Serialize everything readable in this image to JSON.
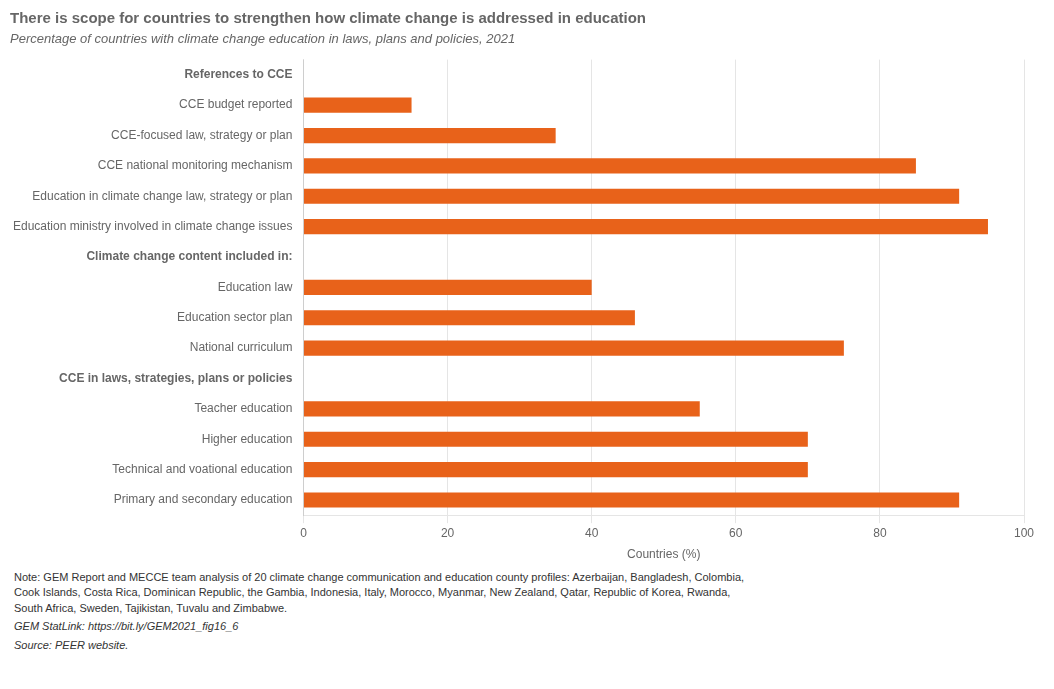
{
  "chart_data": {
    "type": "bar",
    "orientation": "horizontal",
    "title": "There is scope for countries to strengthen how climate change is addressed in education",
    "subtitle": "Percentage of countries with climate change education in laws, plans and policies, 2021",
    "xlabel": "Countries (%)",
    "categories": [
      "Primary and secondary education",
      "Technical and voational education",
      "Higher education",
      "Teacher education",
      "CCE in laws, strategies, plans or policies",
      "National curriculum",
      "Education sector plan",
      "Education law",
      "Climate change content included in:",
      "Education ministry involved in climate change issues",
      "Education in climate change law, strategy or plan",
      "CCE national monitoring mechanism",
      "CCE-focused law, strategy or plan",
      "CCE budget reported",
      "References to CCE"
    ],
    "values": [
      91,
      70,
      70,
      55,
      null,
      75,
      46,
      40,
      null,
      95,
      91,
      85,
      35,
      15,
      null
    ],
    "color": "#e8621a",
    "xlim": [
      0,
      100
    ],
    "xticks": [
      0,
      20,
      40,
      60,
      80,
      100
    ],
    "grid": true,
    "annotations": [
      "Note: GEM Report and MECCE team analysis of 20 climate change communication and education county profiles: Azerbaijan, Bangladesh, Colombia,\nCook Islands, Costa Rica, Dominican Republic, the Gambia, Indonesia, Italy, Morocco, Myanmar, New Zealand, Qatar, Republic of Korea, Rwanda,\nSouth Africa, Sweden, Tajikistan, Tuvalu and Zimbabwe.",
      "GEM StatLink: https://bit.ly/GEM2021_fig16_6",
      "Source: PEER website."
    ]
  }
}
